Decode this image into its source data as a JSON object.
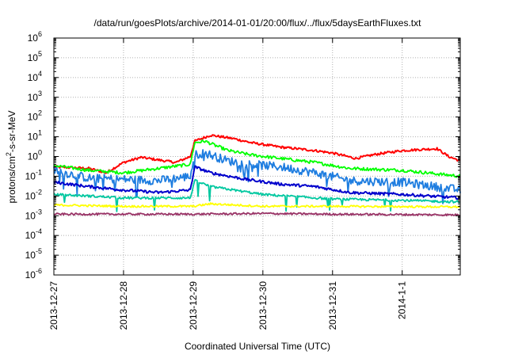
{
  "chart_data": {
    "type": "line",
    "title": "/data/run/goesPlots/archive/2014-01-01/20:00/flux/../flux/5daysEarthFluxes.txt",
    "xlabel": "Coordinated Universal Time (UTC)",
    "ylabel": {
      "base": "protons/cm",
      "sup": "2",
      "rest": "-s-sr-MeV"
    },
    "yscale": "log",
    "ylim_exp": [
      -6,
      6
    ],
    "y_ticks": [
      {
        "base": "10",
        "exp": "-6"
      },
      {
        "base": "10",
        "exp": "-5"
      },
      {
        "base": "10",
        "exp": "-4"
      },
      {
        "base": "10",
        "exp": "-3"
      },
      {
        "base": "10",
        "exp": "-2"
      },
      {
        "base": "10",
        "exp": "-1"
      },
      {
        "base": "10",
        "exp": "0"
      },
      {
        "base": "10",
        "exp": "1"
      },
      {
        "base": "10",
        "exp": "2"
      },
      {
        "base": "10",
        "exp": "3"
      },
      {
        "base": "10",
        "exp": "4"
      },
      {
        "base": "10",
        "exp": "5"
      },
      {
        "base": "10",
        "exp": "6"
      }
    ],
    "x_range": [
      "2013-12-27",
      "2014-01-01T20:00"
    ],
    "x_ticks": [
      {
        "date": "2013-12-27",
        "label": "2013-12-27"
      },
      {
        "date": "2013-12-28",
        "label": "2013-12-28"
      },
      {
        "date": "2013-12-29",
        "label": "2013-12-29"
      },
      {
        "date": "2013-12-30",
        "label": "2013-12-30"
      },
      {
        "date": "2013-12-31",
        "label": "2013-12-31"
      },
      {
        "date": "2014-01-01",
        "label": "2014-1-1"
      }
    ],
    "grid": true,
    "series": [
      {
        "color": "#ff0000",
        "noise": 0.06,
        "spikes": 0.0,
        "points": [
          [
            "2013-12-27T00:00",
            0.3
          ],
          [
            "2013-12-27T12:00",
            0.25
          ],
          [
            "2013-12-27T18:00",
            0.15
          ],
          [
            "2013-12-28T00:00",
            0.5
          ],
          [
            "2013-12-28T06:00",
            0.9
          ],
          [
            "2013-12-28T18:00",
            0.5
          ],
          [
            "2013-12-28T23:00",
            1.0
          ],
          [
            "2013-12-29T00:30",
            6
          ],
          [
            "2013-12-29T06:00",
            12
          ],
          [
            "2013-12-29T14:00",
            8
          ],
          [
            "2013-12-29T20:00",
            5
          ],
          [
            "2013-12-30T06:00",
            3
          ],
          [
            "2013-12-30T18:00",
            2
          ],
          [
            "2013-12-31T00:00",
            1.5
          ],
          [
            "2013-12-31T08:00",
            0.8
          ],
          [
            "2013-12-31T15:00",
            1.3
          ],
          [
            "2014-01-01T00:00",
            2.0
          ],
          [
            "2014-01-01T12:00",
            2.5
          ],
          [
            "2014-01-01T16:00",
            1.0
          ],
          [
            "2014-01-01T20:00",
            0.6
          ]
        ]
      },
      {
        "color": "#00ff00",
        "noise": 0.08,
        "spikes": 0.0,
        "points": [
          [
            "2013-12-27T00:00",
            0.35
          ],
          [
            "2013-12-27T12:00",
            0.2
          ],
          [
            "2013-12-28T00:00",
            0.15
          ],
          [
            "2013-12-28T12:00",
            0.25
          ],
          [
            "2013-12-28T23:00",
            0.4
          ],
          [
            "2013-12-29T00:30",
            5
          ],
          [
            "2013-12-29T04:00",
            6
          ],
          [
            "2013-12-29T12:00",
            2
          ],
          [
            "2013-12-29T20:00",
            1.2
          ],
          [
            "2013-12-30T06:00",
            0.8
          ],
          [
            "2013-12-30T18:00",
            0.5
          ],
          [
            "2013-12-31T06:00",
            0.25
          ],
          [
            "2014-01-01T00:00",
            0.2
          ],
          [
            "2014-01-01T20:00",
            0.1
          ]
        ]
      },
      {
        "color": "#1e7de0",
        "noise": 0.22,
        "spikes": 0.05,
        "points": [
          [
            "2013-12-27T00:00",
            0.2
          ],
          [
            "2013-12-27T12:00",
            0.08
          ],
          [
            "2013-12-28T00:00",
            0.07
          ],
          [
            "2013-12-28T12:00",
            0.06
          ],
          [
            "2013-12-28T23:00",
            0.1
          ],
          [
            "2013-12-29T00:30",
            1.2
          ],
          [
            "2013-12-29T04:00",
            1.5
          ],
          [
            "2013-12-29T12:00",
            0.6
          ],
          [
            "2013-12-29T20:00",
            0.4
          ],
          [
            "2013-12-30T06:00",
            0.3
          ],
          [
            "2013-12-30T18:00",
            0.15
          ],
          [
            "2013-12-31T06:00",
            0.06
          ],
          [
            "2014-01-01T00:00",
            0.05
          ],
          [
            "2014-01-01T20:00",
            0.02
          ]
        ]
      },
      {
        "color": "#0000cc",
        "noise": 0.07,
        "spikes": 0.0,
        "points": [
          [
            "2013-12-27T00:00",
            0.05
          ],
          [
            "2013-12-27T12:00",
            0.03
          ],
          [
            "2013-12-28T00:00",
            0.02
          ],
          [
            "2013-12-28T12:00",
            0.015
          ],
          [
            "2013-12-28T23:00",
            0.02
          ],
          [
            "2013-12-29T00:30",
            0.3
          ],
          [
            "2013-12-29T06:00",
            0.15
          ],
          [
            "2013-12-29T18:00",
            0.07
          ],
          [
            "2013-12-30T06:00",
            0.04
          ],
          [
            "2013-12-30T18:00",
            0.03
          ],
          [
            "2013-12-31T06:00",
            0.015
          ],
          [
            "2014-01-01T00:00",
            0.012
          ],
          [
            "2014-01-01T20:00",
            0.008
          ]
        ]
      },
      {
        "color": "#00c8a0",
        "noise": 0.06,
        "spikes": 0.03,
        "points": [
          [
            "2013-12-27T00:00",
            0.012
          ],
          [
            "2013-12-27T12:00",
            0.01
          ],
          [
            "2013-12-28T00:00",
            0.008
          ],
          [
            "2013-12-28T23:00",
            0.008
          ],
          [
            "2013-12-29T00:30",
            0.06
          ],
          [
            "2013-12-29T06:00",
            0.03
          ],
          [
            "2013-12-30T00:00",
            0.012
          ],
          [
            "2013-12-31T00:00",
            0.007
          ],
          [
            "2014-01-01T00:00",
            0.006
          ],
          [
            "2014-01-01T20:00",
            0.005
          ]
        ]
      },
      {
        "color": "#ffff00",
        "noise": 0.05,
        "spikes": 0.0,
        "points": [
          [
            "2013-12-27T00:00",
            0.0035
          ],
          [
            "2013-12-28T00:00",
            0.003
          ],
          [
            "2013-12-29T00:00",
            0.003
          ],
          [
            "2013-12-29T06:00",
            0.004
          ],
          [
            "2013-12-30T00:00",
            0.003
          ],
          [
            "2013-12-31T00:00",
            0.003
          ],
          [
            "2014-01-01T20:00",
            0.0028
          ]
        ]
      },
      {
        "color": "#993366",
        "noise": 0.05,
        "spikes": 0.0,
        "points": [
          [
            "2013-12-27T00:00",
            0.0012
          ],
          [
            "2013-12-28T00:00",
            0.0012
          ],
          [
            "2013-12-29T00:00",
            0.0012
          ],
          [
            "2013-12-30T00:00",
            0.0013
          ],
          [
            "2013-12-31T00:00",
            0.0012
          ],
          [
            "2014-01-01T20:00",
            0.0011
          ]
        ]
      }
    ]
  }
}
